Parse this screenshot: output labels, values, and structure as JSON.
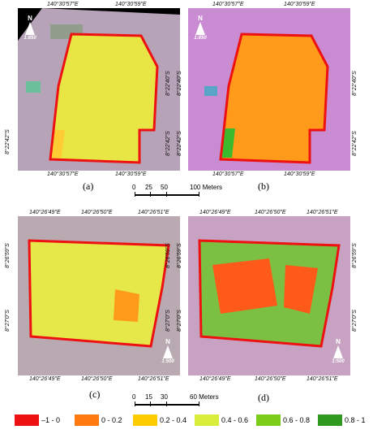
{
  "panels": [
    {
      "label": "(a)",
      "top_coords": [
        "140°30'57\"E",
        "140°30'59\"E"
      ],
      "bottom_coords": [
        "140°30'57\"E",
        "140°30'59\"E"
      ],
      "left_coords": [
        "8°22'42\"S"
      ],
      "right_coords": [
        "8°22'40\"S",
        "8°22'42\"S"
      ],
      "north": "N",
      "scale": "1:850",
      "field_color": "#e8e645",
      "field_accent": "#ffcc33",
      "surround_color": "#b7a3b8"
    },
    {
      "label": "(b)",
      "top_coords": [
        "140°30'57\"E",
        "140°30'59\"E"
      ],
      "bottom_coords": [
        "140°30'57\"E",
        "140°30'59\"E"
      ],
      "left_coords": [
        "8°22'40\"S",
        "8°22'42\"S"
      ],
      "right_coords": [
        "8°22'40\"S",
        "8°22'42\"S"
      ],
      "north": "N",
      "scale": "1:850",
      "field_color": "#ff9a1a",
      "field_accent": "#ffb300",
      "surround_color": "#c98bd1"
    },
    {
      "label": "(c)",
      "top_coords": [
        "140°26'49\"E",
        "140°26'50\"E",
        "140°26'51\"E"
      ],
      "bottom_coords": [
        "140°26'49\"E",
        "140°26'50\"E",
        "140°26'51\"E"
      ],
      "left_coords": [
        "8°26'59\"S",
        "8°27'0\"S"
      ],
      "right_coords": [
        "8°26'59\"S",
        "8°27'0\"S"
      ],
      "north": "N",
      "scale": "1:500",
      "field_color": "#e6e84a",
      "field_accent": "#ff9a1a",
      "surround_color": "#b9a9b0"
    },
    {
      "label": "(d)",
      "top_coords": [
        "140°26'49\"E",
        "140°26'50\"E",
        "140°26'51\"E"
      ],
      "bottom_coords": [
        "140°26'49\"E",
        "140°26'50\"E",
        "140°26'51\"E"
      ],
      "left_coords": [
        "8°26'59\"S",
        "8°27'0\"S"
      ],
      "right_coords": [
        "8°26'59\"S",
        "8°27'0\"S"
      ],
      "north": "N",
      "scale": "1:500",
      "field_color": "#7cc043",
      "field_accent": "#ff5a1a",
      "surround_color": "#c7a2c3"
    }
  ],
  "scalebar_top": {
    "ticks": [
      "0",
      "25",
      "50",
      "100 Meters"
    ]
  },
  "scalebar_bottom": {
    "ticks": [
      "0",
      "15",
      "30",
      "60 Meters"
    ]
  },
  "legend": [
    {
      "label": "–1 - 0",
      "color": "#ee1111"
    },
    {
      "label": "0 - 0.2",
      "color": "#ff7a10"
    },
    {
      "label": "0.2 - 0.4",
      "color": "#ffcc00"
    },
    {
      "label": "0.4 - 0.6",
      "color": "#d8ee3a"
    },
    {
      "label": "0.6 - 0.8",
      "color": "#7ccc1a"
    },
    {
      "label": "0.8 - 1",
      "color": "#2f9a1f"
    }
  ]
}
